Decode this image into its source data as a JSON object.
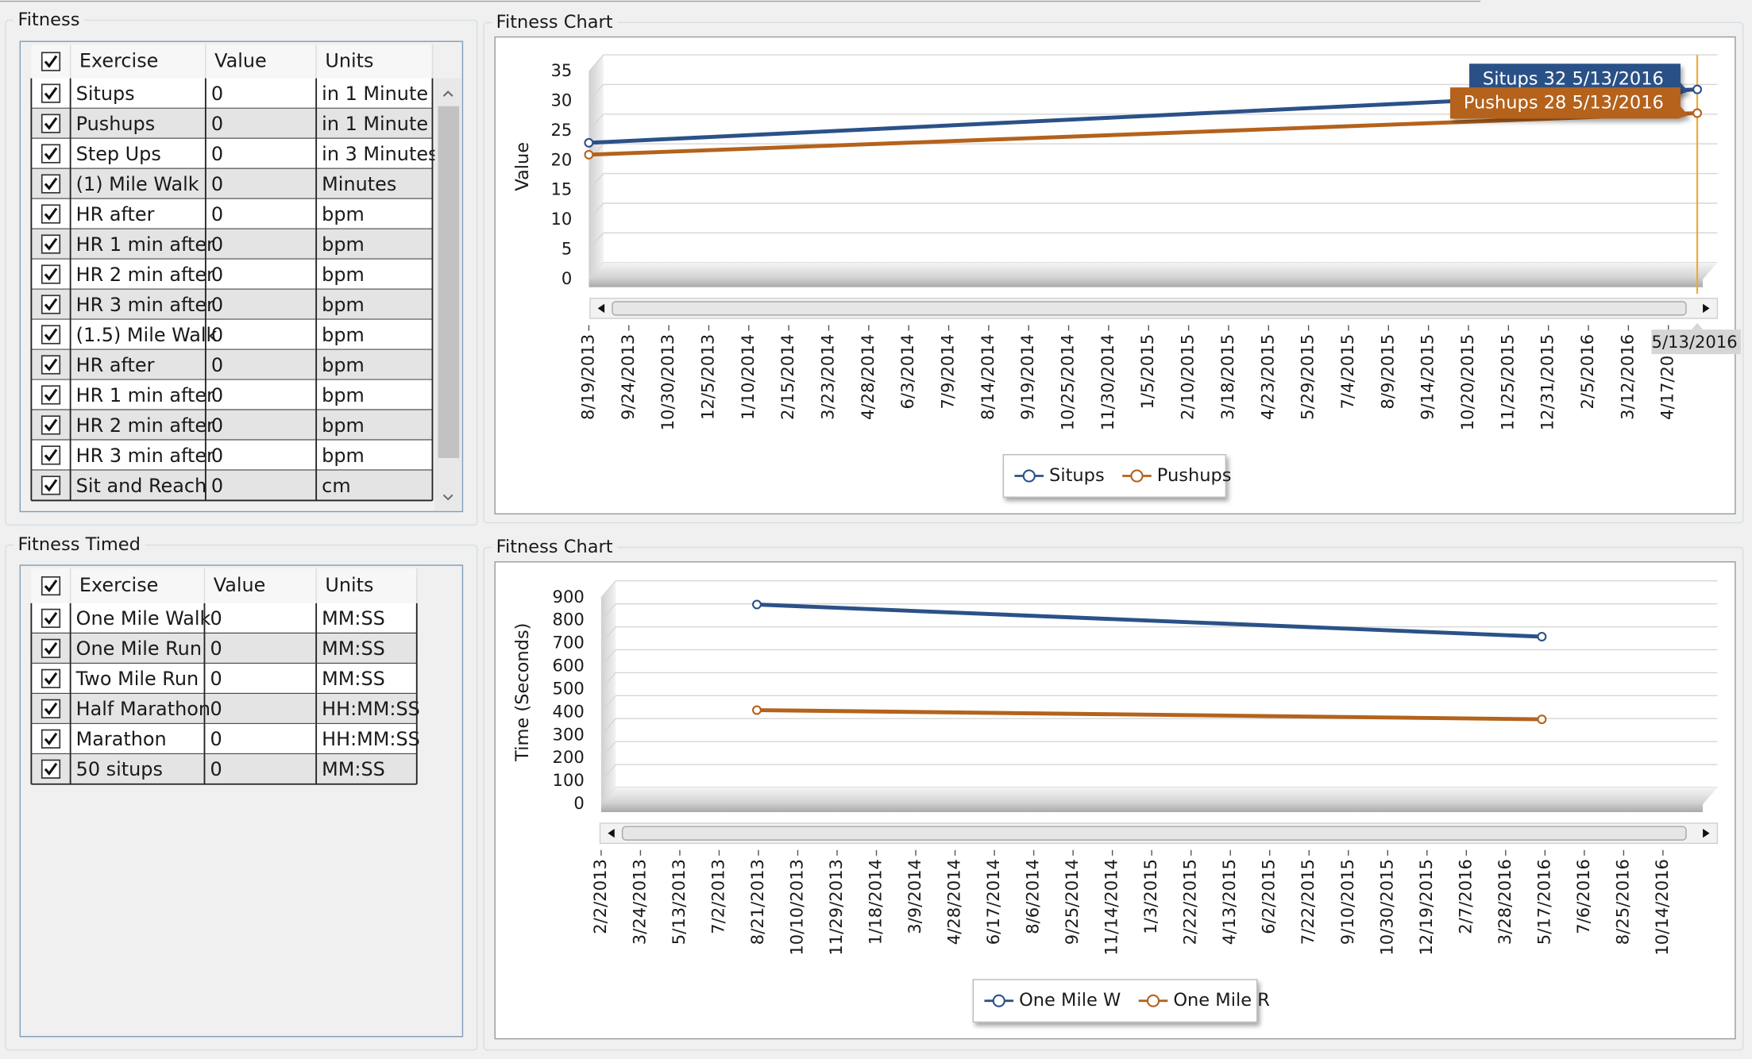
{
  "fitness": {
    "title": "Fitness",
    "columns": [
      "Exercise",
      "Value",
      "Units"
    ],
    "rows": [
      [
        "Situps",
        0,
        "in 1 Minute"
      ],
      [
        "Pushups",
        0,
        "in 1 Minute"
      ],
      [
        "Step Ups",
        0,
        "in 3 Minutes"
      ],
      [
        "(1) Mile Walk",
        0,
        "Minutes"
      ],
      [
        "HR after",
        0,
        "bpm"
      ],
      [
        "HR 1 min after",
        0,
        "bpm"
      ],
      [
        "HR 2 min after",
        0,
        "bpm"
      ],
      [
        "HR 3 min after",
        0,
        "bpm"
      ],
      [
        "(1.5) Mile Walk",
        0,
        "bpm"
      ],
      [
        "HR after",
        0,
        "bpm"
      ],
      [
        "HR 1 min after",
        0,
        "bpm"
      ],
      [
        "HR 2 min after",
        0,
        "bpm"
      ],
      [
        "HR 3 min after",
        0,
        "bpm"
      ],
      [
        "Sit and Reach",
        0,
        "cm"
      ]
    ]
  },
  "fitness_timed": {
    "title": "Fitness Timed",
    "columns": [
      "Exercise",
      "Value",
      "Units"
    ],
    "rows": [
      [
        "One Mile Walk",
        0,
        "MM:SS"
      ],
      [
        "One Mile Run",
        0,
        "MM:SS"
      ],
      [
        "Two Mile Run",
        0,
        "MM:SS"
      ],
      [
        "Half Marathon",
        0,
        "HH:MM:SS"
      ],
      [
        "Marathon",
        0,
        "HH:MM:SS"
      ],
      [
        "50 situps",
        0,
        "MM:SS"
      ]
    ]
  },
  "charts": [
    {
      "type": "line",
      "title": "Fitness Chart",
      "y_label": "Value",
      "ylim": [
        0,
        35
      ],
      "yticks": [
        0,
        5,
        10,
        15,
        20,
        25,
        30,
        35
      ],
      "xlim": [
        "8/19/2013",
        "5/13/2016"
      ],
      "xticks": [
        "8/19/2013",
        "9/24/2013",
        "10/30/2013",
        "12/5/2013",
        "1/10/2014",
        "2/15/2014",
        "3/23/2014",
        "4/28/2014",
        "6/3/2014",
        "7/9/2014",
        "8/14/2014",
        "9/19/2014",
        "10/25/2014",
        "11/30/2014",
        "1/5/2015",
        "2/10/2015",
        "3/18/2015",
        "4/23/2015",
        "5/29/2015",
        "7/4/2015",
        "8/9/2015",
        "9/14/2015",
        "10/20/2015",
        "11/25/2015",
        "12/31/2015",
        "2/5/2016",
        "3/12/2016",
        "4/17/2016"
      ],
      "series": [
        {
          "name": "Situps",
          "color": "#2b5187",
          "x": [
            "8/19/2013",
            "5/13/2016"
          ],
          "values": [
            23,
            32
          ]
        },
        {
          "name": "Pushups",
          "color": "#b4621c",
          "x": [
            "8/19/2013",
            "5/13/2016"
          ],
          "values": [
            21,
            28
          ]
        }
      ],
      "annotations": [
        "Situps 32 5/13/2016",
        "Pushups 28 5/13/2016"
      ],
      "cursor": "5/13/2016"
    },
    {
      "type": "line",
      "title": "Fitness Chart",
      "y_label": "Time (Seconds)",
      "ylim": [
        0,
        900
      ],
      "yticks": [
        0,
        100,
        200,
        300,
        400,
        500,
        600,
        700,
        800,
        900
      ],
      "xlim": [
        "2/2/2013",
        "11/28/2016"
      ],
      "xticks": [
        "2/2/2013",
        "3/24/2013",
        "5/13/2013",
        "7/2/2013",
        "8/21/2013",
        "10/10/2013",
        "11/29/2013",
        "1/18/2014",
        "3/9/2014",
        "4/28/2014",
        "6/17/2014",
        "8/6/2014",
        "9/25/2014",
        "11/14/2014",
        "1/3/2015",
        "2/22/2015",
        "4/13/2015",
        "6/2/2015",
        "7/22/2015",
        "9/10/2015",
        "10/30/2015",
        "12/19/2015",
        "2/7/2016",
        "3/28/2016",
        "5/17/2016",
        "7/6/2016",
        "8/25/2016",
        "10/14/2016"
      ],
      "series": [
        {
          "name": "One Mile W",
          "color": "#2b5187",
          "x": [
            "8/19/2013",
            "5/13/2016"
          ],
          "values": [
            870,
            730
          ]
        },
        {
          "name": "One Mile R",
          "color": "#b4621c",
          "x": [
            "8/19/2013",
            "5/13/2016"
          ],
          "values": [
            410,
            370
          ]
        }
      ]
    }
  ]
}
